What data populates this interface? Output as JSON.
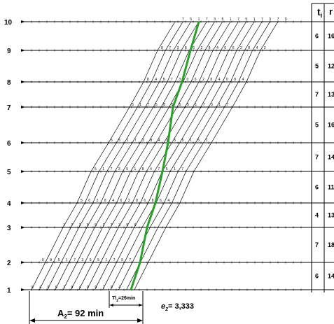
{
  "header": {
    "ti_label": "t",
    "ti_sub": "i",
    "second_col_label": "r"
  },
  "levels": [
    {
      "label": "1",
      "ti": ""
    },
    {
      "label": "2",
      "ti": "6"
    },
    {
      "label": "3",
      "ti": "7"
    },
    {
      "label": "4",
      "ti": "4"
    },
    {
      "label": "5",
      "ti": "6"
    },
    {
      "label": "6",
      "ti": "7"
    },
    {
      "label": "7",
      "ti": "5"
    },
    {
      "label": "8",
      "ti": "7"
    },
    {
      "label": "9",
      "ti": "5"
    },
    {
      "label": "10",
      "ti": "6"
    }
  ],
  "right_col_values": [
    "16",
    "12",
    "13",
    "16",
    "14",
    "11",
    "13",
    "18",
    "14"
  ],
  "annotations": {
    "a2_label": "A",
    "a2_sub": "2",
    "a2_value": "= 92 min",
    "tl_label": "Tl",
    "tl_sub": "2",
    "tl_value": "=26min",
    "e2_label": "e",
    "e2_sub": "2",
    "e2_value": "= 3,333"
  },
  "colors": {
    "critical_path": "#2aa02a",
    "lines": "#000000"
  },
  "cell_digits": [
    [
      "8",
      "4",
      "0",
      "6",
      "2",
      "8",
      "4",
      "0",
      "6",
      "2",
      "8",
      "4"
    ],
    [
      "5",
      "8",
      "5",
      "1",
      "7",
      "3",
      "5",
      "5",
      "1",
      "7",
      "9",
      "7"
    ],
    [
      "1",
      "7",
      "3",
      "5",
      "5",
      "1",
      "7",
      "3",
      "5",
      "6"
    ],
    [
      "5",
      "6",
      "2",
      "8",
      "4",
      "6",
      "3",
      "8",
      "6",
      "8",
      "6",
      "4"
    ],
    [
      "5",
      "1",
      "7",
      "3",
      "5",
      "1",
      "8",
      "4",
      "7",
      "5",
      "1",
      "7"
    ],
    [
      "5",
      "5",
      "1",
      "7",
      "3",
      "8",
      "4",
      "1",
      "5",
      "5",
      "1",
      "5",
      "1"
    ],
    [
      "5",
      "1",
      "7",
      "5",
      "8",
      "6",
      "5",
      "5",
      "1",
      "7",
      "3",
      "1",
      "7"
    ],
    [
      "8",
      "4",
      "8",
      "7",
      "3",
      "0",
      "6",
      "2",
      "8",
      "4",
      "0",
      "8",
      "4"
    ],
    [
      "8",
      "7",
      "3",
      "8",
      "6",
      "2",
      "8",
      "4",
      "0",
      "6",
      "2",
      "8",
      "4",
      "2"
    ],
    [
      "7",
      "5",
      "1",
      "7",
      "3",
      "5",
      "1",
      "7",
      "5",
      "1",
      "7",
      "3",
      "7",
      "9"
    ]
  ]
}
